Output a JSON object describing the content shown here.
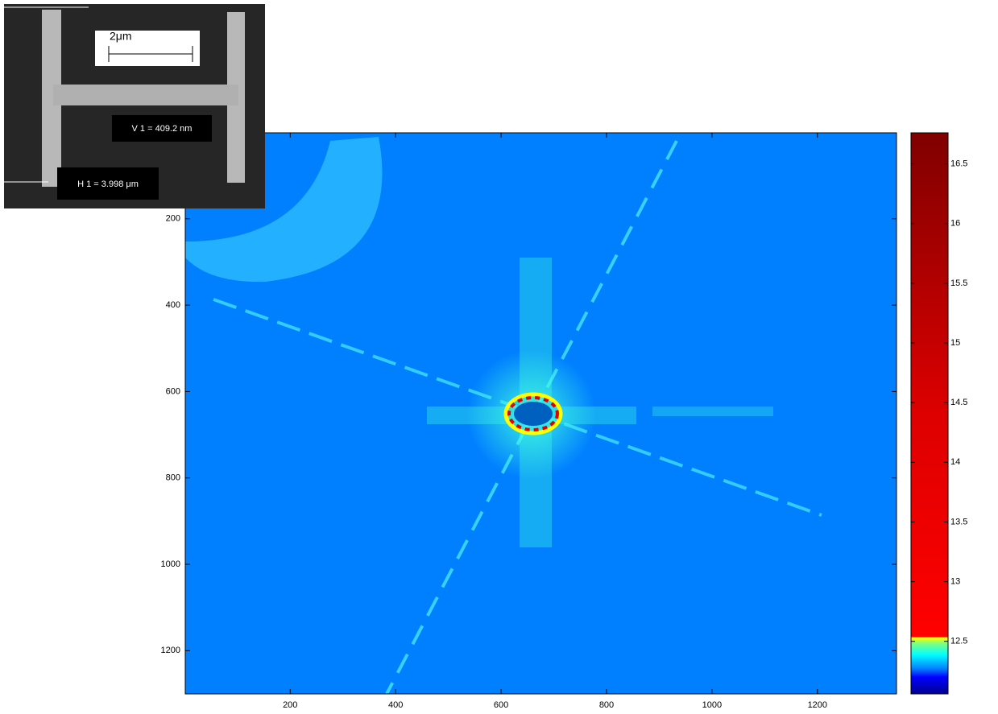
{
  "chart_data": {
    "type": "image",
    "xlim": [
      1,
      1350
    ],
    "xticks": [
      200,
      400,
      600,
      800,
      1000,
      1200
    ],
    "ylim": [
      1,
      1300
    ],
    "y_reversed": true,
    "yticks": [
      200,
      400,
      600,
      800,
      1000,
      1200
    ],
    "clim": [
      12.06,
      16.76
    ],
    "cticks": [
      12.5,
      13,
      13.5,
      14,
      14.5,
      15,
      15.5,
      16,
      16.5
    ],
    "background_color": "#0080ff",
    "inset": {
      "scale_label": "2μm",
      "v_label": "V 1 = 409.2 nm",
      "h_label": "H 1 = 3.998 μm"
    }
  }
}
